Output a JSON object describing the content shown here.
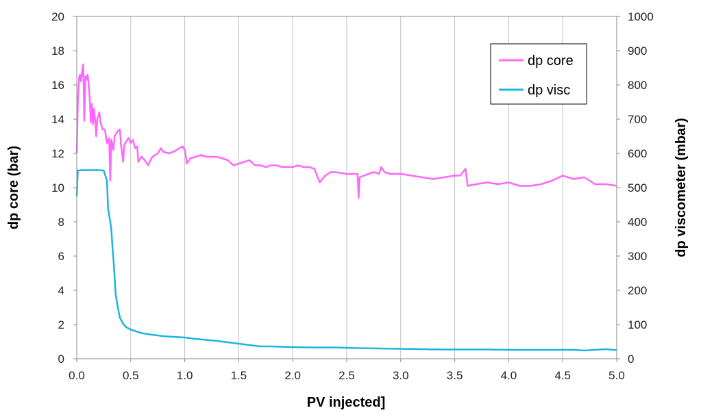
{
  "chart_data": {
    "type": "line",
    "xlabel": "PV injected]",
    "ylabel_left": "dp core (bar)",
    "ylabel_right": "dp viscometer (mbar)",
    "xlim": [
      0,
      5
    ],
    "ylim_left": [
      0,
      20
    ],
    "ylim_right": [
      0,
      1000
    ],
    "x_ticks": [
      "0.0",
      "0.5",
      "1.0",
      "1.5",
      "2.0",
      "2.5",
      "3.0",
      "3.5",
      "4.0",
      "4.5",
      "5.0"
    ],
    "y_left_ticks": [
      "0",
      "2",
      "4",
      "6",
      "8",
      "10",
      "12",
      "14",
      "16",
      "18",
      "20"
    ],
    "y_right_ticks": [
      "0",
      "100",
      "200",
      "300",
      "400",
      "500",
      "600",
      "700",
      "800",
      "900",
      "1000"
    ],
    "grid": "vertical",
    "legend_position": "top-right",
    "colors": {
      "dp_core": "#ff66ff",
      "dp_visc": "#1cb4e0"
    },
    "series": [
      {
        "name": "dp core",
        "axis": "left",
        "points": [
          [
            0.0,
            12.0
          ],
          [
            0.01,
            15.0
          ],
          [
            0.02,
            16.4
          ],
          [
            0.03,
            16.6
          ],
          [
            0.04,
            16.2
          ],
          [
            0.05,
            16.8
          ],
          [
            0.06,
            17.2
          ],
          [
            0.07,
            13.9
          ],
          [
            0.08,
            16.5
          ],
          [
            0.09,
            16.3
          ],
          [
            0.1,
            16.6
          ],
          [
            0.11,
            16.1
          ],
          [
            0.12,
            15.2
          ],
          [
            0.13,
            13.8
          ],
          [
            0.14,
            14.9
          ],
          [
            0.15,
            13.7
          ],
          [
            0.16,
            14.6
          ],
          [
            0.17,
            14.0
          ],
          [
            0.18,
            13.0
          ],
          [
            0.19,
            14.0
          ],
          [
            0.21,
            14.4
          ],
          [
            0.22,
            13.8
          ],
          [
            0.24,
            13.4
          ],
          [
            0.26,
            13.4
          ],
          [
            0.28,
            12.6
          ],
          [
            0.3,
            12.9
          ],
          [
            0.31,
            10.4
          ],
          [
            0.32,
            12.8
          ],
          [
            0.34,
            12.2
          ],
          [
            0.35,
            13.0
          ],
          [
            0.38,
            13.3
          ],
          [
            0.4,
            13.4
          ],
          [
            0.41,
            12.5
          ],
          [
            0.43,
            11.5
          ],
          [
            0.44,
            12.5
          ],
          [
            0.46,
            12.7
          ],
          [
            0.48,
            12.9
          ],
          [
            0.5,
            12.6
          ],
          [
            0.52,
            12.8
          ],
          [
            0.54,
            12.3
          ],
          [
            0.56,
            12.4
          ],
          [
            0.57,
            11.5
          ],
          [
            0.6,
            11.8
          ],
          [
            0.63,
            11.6
          ],
          [
            0.66,
            11.3
          ],
          [
            0.7,
            11.8
          ],
          [
            0.75,
            12.0
          ],
          [
            0.78,
            12.3
          ],
          [
            0.8,
            12.1
          ],
          [
            0.85,
            12.0
          ],
          [
            0.9,
            12.1
          ],
          [
            0.95,
            12.3
          ],
          [
            0.98,
            12.4
          ],
          [
            1.0,
            12.2
          ],
          [
            1.02,
            11.4
          ],
          [
            1.05,
            11.7
          ],
          [
            1.1,
            11.8
          ],
          [
            1.15,
            11.9
          ],
          [
            1.2,
            11.8
          ],
          [
            1.3,
            11.8
          ],
          [
            1.4,
            11.6
          ],
          [
            1.45,
            11.3
          ],
          [
            1.5,
            11.4
          ],
          [
            1.55,
            11.5
          ],
          [
            1.6,
            11.6
          ],
          [
            1.65,
            11.3
          ],
          [
            1.7,
            11.3
          ],
          [
            1.75,
            11.2
          ],
          [
            1.8,
            11.3
          ],
          [
            1.85,
            11.3
          ],
          [
            1.9,
            11.2
          ],
          [
            2.0,
            11.2
          ],
          [
            2.05,
            11.3
          ],
          [
            2.1,
            11.2
          ],
          [
            2.15,
            11.2
          ],
          [
            2.2,
            11.1
          ],
          [
            2.25,
            10.3
          ],
          [
            2.3,
            10.7
          ],
          [
            2.35,
            10.9
          ],
          [
            2.4,
            10.9
          ],
          [
            2.5,
            10.8
          ],
          [
            2.55,
            10.8
          ],
          [
            2.6,
            10.8
          ],
          [
            2.61,
            9.4
          ],
          [
            2.62,
            10.6
          ],
          [
            2.7,
            10.8
          ],
          [
            2.75,
            10.9
          ],
          [
            2.8,
            10.8
          ],
          [
            2.82,
            11.2
          ],
          [
            2.85,
            10.9
          ],
          [
            2.9,
            10.8
          ],
          [
            3.0,
            10.8
          ],
          [
            3.1,
            10.7
          ],
          [
            3.2,
            10.6
          ],
          [
            3.3,
            10.5
          ],
          [
            3.4,
            10.6
          ],
          [
            3.5,
            10.7
          ],
          [
            3.55,
            10.7
          ],
          [
            3.6,
            11.1
          ],
          [
            3.62,
            10.1
          ],
          [
            3.7,
            10.2
          ],
          [
            3.8,
            10.3
          ],
          [
            3.9,
            10.2
          ],
          [
            4.0,
            10.3
          ],
          [
            4.1,
            10.1
          ],
          [
            4.2,
            10.1
          ],
          [
            4.3,
            10.2
          ],
          [
            4.4,
            10.4
          ],
          [
            4.5,
            10.7
          ],
          [
            4.6,
            10.5
          ],
          [
            4.7,
            10.6
          ],
          [
            4.75,
            10.4
          ],
          [
            4.8,
            10.2
          ],
          [
            4.9,
            10.2
          ],
          [
            5.0,
            10.1
          ]
        ]
      },
      {
        "name": "dp visc",
        "axis": "right",
        "points": [
          [
            0.0,
            475
          ],
          [
            0.01,
            550
          ],
          [
            0.05,
            551
          ],
          [
            0.1,
            551
          ],
          [
            0.15,
            551
          ],
          [
            0.2,
            551
          ],
          [
            0.25,
            550
          ],
          [
            0.28,
            520
          ],
          [
            0.29,
            440
          ],
          [
            0.3,
            420
          ],
          [
            0.32,
            380
          ],
          [
            0.33,
            330
          ],
          [
            0.34,
            290
          ],
          [
            0.35,
            240
          ],
          [
            0.36,
            190
          ],
          [
            0.37,
            170
          ],
          [
            0.38,
            150
          ],
          [
            0.4,
            120
          ],
          [
            0.43,
            102
          ],
          [
            0.46,
            92
          ],
          [
            0.5,
            85
          ],
          [
            0.55,
            80
          ],
          [
            0.6,
            75
          ],
          [
            0.7,
            70
          ],
          [
            0.8,
            66
          ],
          [
            0.9,
            64
          ],
          [
            1.0,
            62
          ],
          [
            1.1,
            58
          ],
          [
            1.2,
            55
          ],
          [
            1.3,
            52
          ],
          [
            1.4,
            48
          ],
          [
            1.5,
            44
          ],
          [
            1.6,
            40
          ],
          [
            1.7,
            36
          ],
          [
            1.8,
            36
          ],
          [
            1.9,
            35
          ],
          [
            2.0,
            34
          ],
          [
            2.2,
            33
          ],
          [
            2.4,
            33
          ],
          [
            2.5,
            32
          ],
          [
            2.6,
            31
          ],
          [
            2.8,
            30
          ],
          [
            3.0,
            29
          ],
          [
            3.2,
            28
          ],
          [
            3.4,
            27
          ],
          [
            3.6,
            27
          ],
          [
            3.8,
            27
          ],
          [
            4.0,
            26
          ],
          [
            4.2,
            26
          ],
          [
            4.4,
            26
          ],
          [
            4.6,
            26
          ],
          [
            4.7,
            24
          ],
          [
            4.8,
            26
          ],
          [
            4.9,
            28
          ],
          [
            5.0,
            25
          ]
        ]
      }
    ]
  }
}
